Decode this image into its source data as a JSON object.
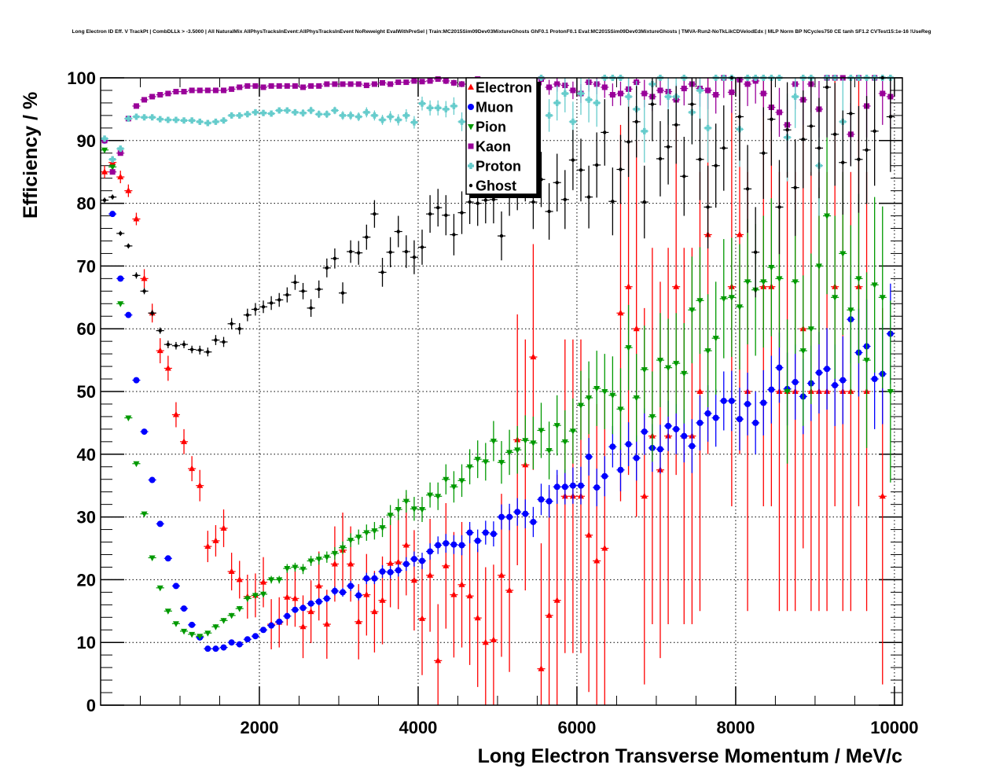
{
  "chart_data": {
    "type": "scatter",
    "title": "Long Electron ID Eff. V TrackPt | CombDLLk > -3.5000 | All NaturalMix AllPhysTracksInEvent:AllPhysTracksInEvent NoReweight EvalWithPreSel | Train:MC2015Sim09Dev03MixtureGhosts GhF0.1 ProtonF0.1 Eval:MC2015Sim09Dev03MixtureGhosts | TMVA-Run2-NoTkLikCDVelodEdx | MLP Norm BP NCycles750 CE tanh SF1.2 CVTest15:1e-16 !UseReg",
    "xlabel": "Long Electron Transverse Momentum / MeV/c",
    "ylabel": "Efficiency / %",
    "xlim": [
      0,
      10100
    ],
    "ylim": [
      0,
      100
    ],
    "grid": true,
    "legend_position": "top-center",
    "bin_start": 0,
    "bin_width": 100,
    "xticks": [
      "2000",
      "4000",
      "6000",
      "8000",
      "10000"
    ],
    "yticks": [
      "0",
      "10",
      "20",
      "30",
      "40",
      "50",
      "60",
      "70",
      "80",
      "90",
      "100"
    ],
    "series": [
      {
        "name": "Electron",
        "color": "#ff0000",
        "marker": "triangle-up",
        "values": [
          85,
          86.5,
          84.2,
          82,
          77.5,
          68,
          62.5,
          56.5,
          53.7,
          46.3,
          42,
          37.7,
          35,
          25.3,
          26.2,
          28.2,
          21.3,
          20,
          17.3,
          17.5,
          19.6,
          12.9,
          13.2,
          17.2,
          17,
          12.5,
          14.9,
          19,
          12.9,
          22.5,
          24.7,
          22.5,
          13.3,
          17.6,
          14.9,
          16.7,
          22.6,
          22.8,
          25.5,
          19.9,
          13.8,
          20.7,
          7.1,
          22.2,
          17.6,
          19.2,
          17.4,
          13.9,
          10,
          10.4,
          20.7,
          18.3,
          42.3,
          38.3,
          55.5,
          5.8,
          14.3,
          16.7,
          33.3,
          33.3,
          33.3,
          27.1,
          23,
          25,
          null,
          62.5,
          66.7,
          60,
          33.3,
          42.9,
          37.5,
          42.9,
          66.7,
          42.9,
          42.9,
          50,
          75,
          null,
          null,
          66.7,
          75,
          50,
          null,
          66.7,
          66.7,
          50,
          50,
          50,
          60,
          50,
          50,
          50,
          66.7,
          50,
          50,
          66.7,
          50,
          null,
          33.3,
          null
        ],
        "errors": [
          1,
          1,
          1,
          1,
          1,
          1.5,
          1.5,
          2,
          2,
          2,
          2,
          2,
          2.5,
          2.5,
          2.5,
          3,
          3,
          3,
          3.5,
          3.5,
          4,
          4,
          4,
          4.5,
          4.5,
          5,
          5,
          5.5,
          5.5,
          6,
          6,
          6,
          6,
          6.5,
          6.5,
          7,
          7,
          7.5,
          8,
          8,
          9,
          9,
          9,
          10,
          10,
          10,
          11,
          11,
          12,
          12,
          13,
          13,
          20,
          20,
          18,
          20,
          20,
          20,
          25,
          25,
          25,
          25,
          25,
          25,
          0,
          30,
          30,
          30,
          30,
          30,
          30,
          30,
          30,
          30,
          30,
          35,
          35,
          0,
          0,
          35,
          35,
          35,
          0,
          35,
          35,
          35,
          35,
          35,
          35,
          35,
          35,
          35,
          35,
          35,
          35,
          35,
          35,
          0,
          30,
          0
        ]
      },
      {
        "name": "Muon",
        "color": "#0000ff",
        "marker": "circle",
        "values": [
          90,
          78.3,
          68,
          62.2,
          51.8,
          43.6,
          35.9,
          28.9,
          23.4,
          19,
          15.4,
          12.8,
          10.8,
          9,
          9,
          9.2,
          10,
          9.7,
          10.5,
          11,
          12,
          12.7,
          13.3,
          14.2,
          15.2,
          15.5,
          16.2,
          16.5,
          17,
          18.2,
          18,
          19,
          17.5,
          20.2,
          20.2,
          21.3,
          21.2,
          21.5,
          22.5,
          23.3,
          23,
          24.5,
          25.5,
          25.8,
          25.6,
          25.5,
          27.5,
          26.2,
          27.5,
          27.3,
          30,
          30,
          30.8,
          30.5,
          29.2,
          32.8,
          32.5,
          34.8,
          34.8,
          35,
          35,
          39.6,
          34.7,
          36.5,
          41.2,
          37.5,
          41.6,
          39.4,
          43.6,
          41,
          40.8,
          44.5,
          44,
          42.9,
          41.3,
          45,
          46.5,
          45.8,
          48.5,
          48.5,
          45.6,
          48,
          45,
          48.2,
          50.3,
          53.8,
          50.4,
          51.5,
          49.2,
          51.3,
          53,
          53.6,
          51,
          51.8,
          61.5,
          56.2,
          57.2,
          52,
          52.8,
          59.2
        ],
        "errors": [
          0.3,
          0.3,
          0.3,
          0.3,
          0.3,
          0.3,
          0.3,
          0.3,
          0.3,
          0.3,
          0.3,
          0.3,
          0.3,
          0.3,
          0.3,
          0.3,
          0.3,
          0.3,
          0.4,
          0.4,
          0.4,
          0.4,
          0.4,
          0.5,
          0.5,
          0.5,
          0.5,
          0.6,
          0.6,
          0.7,
          0.7,
          0.8,
          0.8,
          0.9,
          0.9,
          1,
          1,
          1,
          1.1,
          1.2,
          1.3,
          1.3,
          1.4,
          1.5,
          1.5,
          1.6,
          1.7,
          1.8,
          1.9,
          2,
          2,
          2.1,
          2.2,
          2.3,
          2.4,
          2.5,
          2.6,
          2.7,
          2.8,
          2.9,
          3,
          3,
          3,
          3.2,
          3.3,
          3.4,
          3.5,
          3.6,
          3.7,
          3.8,
          3.9,
          4,
          4,
          4.2,
          4.3,
          4.4,
          4.5,
          4.6,
          4.7,
          4.8,
          5,
          5,
          5,
          5.2,
          5.4,
          5.6,
          5.8,
          6,
          6,
          6,
          6.5,
          6.5,
          6.5,
          7,
          7,
          7,
          7.5,
          8,
          8,
          8
        ]
      },
      {
        "name": "Pion",
        "color": "#009900",
        "marker": "triangle-down",
        "values": [
          88.5,
          85.8,
          64,
          45.8,
          38.5,
          30.5,
          23.5,
          18.7,
          15,
          13,
          11.8,
          11.3,
          11,
          11.5,
          12.5,
          13.5,
          14.3,
          15.4,
          17,
          17.5,
          17.7,
          20,
          20,
          21.8,
          22,
          21.7,
          23,
          23.3,
          23.6,
          24.2,
          25.1,
          26.3,
          26.8,
          27.5,
          27.8,
          28.3,
          30.3,
          31.2,
          32.5,
          31.3,
          31.2,
          33.5,
          33.3,
          36,
          34.8,
          35.8,
          38,
          39.2,
          38.8,
          42.1,
          38.7,
          40.3,
          40.7,
          42.2,
          41.8,
          43.8,
          40.6,
          44.6,
          42,
          43.7,
          47.8,
          49,
          50.5,
          50,
          49.4,
          47.2,
          57,
          49,
          53.5,
          46,
          55,
          53.8,
          54.5,
          52.9,
          63,
          64.5,
          56.5,
          58.5,
          64.8,
          65,
          63.5,
          67.5,
          66.2,
          67.5,
          69.8,
          68,
          50,
          67.5,
          56.5,
          60,
          70,
          78,
          65,
          72,
          63,
          68,
          55,
          67,
          65,
          50
        ],
        "errors": [
          0.3,
          0.3,
          0.3,
          0.3,
          0.3,
          0.3,
          0.3,
          0.3,
          0.3,
          0.3,
          0.3,
          0.3,
          0.3,
          0.3,
          0.4,
          0.4,
          0.4,
          0.4,
          0.5,
          0.5,
          0.5,
          0.6,
          0.6,
          0.7,
          0.7,
          0.8,
          0.8,
          0.9,
          0.9,
          1,
          1,
          1.1,
          1.2,
          1.3,
          1.4,
          1.5,
          1.6,
          1.7,
          1.8,
          1.9,
          2,
          2,
          2.2,
          2.4,
          2.5,
          2.6,
          2.8,
          3,
          3,
          3.2,
          3.4,
          3.6,
          3.8,
          4,
          4.2,
          4.4,
          4.6,
          4.8,
          5,
          5.2,
          5.5,
          5.8,
          6,
          6,
          6.2,
          6.5,
          6.8,
          7,
          7,
          7.2,
          7.5,
          7.8,
          8,
          8,
          8.5,
          8.5,
          9,
          9,
          9.5,
          9.5,
          10,
          10,
          10.5,
          10.5,
          11,
          11,
          11.5,
          11.5,
          12,
          12,
          12.5,
          12.5,
          13,
          13,
          13.5,
          13.5,
          14,
          14,
          14.5,
          14.5
        ]
      },
      {
        "name": "Kaon",
        "color": "#990099",
        "marker": "square",
        "values": [
          90,
          85,
          88,
          93.5,
          95.5,
          96.5,
          97,
          97.3,
          97.5,
          97.8,
          97.8,
          98,
          98,
          98,
          98,
          98,
          98.2,
          98.5,
          98.7,
          98.7,
          98.5,
          98.7,
          98.7,
          98.7,
          98.7,
          98.5,
          98.7,
          98.7,
          99,
          99,
          99,
          99,
          99,
          98.8,
          99,
          99.2,
          99,
          99.3,
          99.3,
          99.5,
          99.4,
          99.5,
          99.8,
          99.5,
          99.2,
          99,
          99.3,
          99.8,
          99.5,
          99.6,
          99,
          98,
          99,
          97.5,
          99.5,
          99.8,
          98.5,
          99,
          98.8,
          98,
          97.5,
          99.3,
          99,
          98.5,
          97.3,
          97.5,
          98.2,
          99.3,
          97.5,
          97,
          98,
          97.8,
          96.5,
          98.3,
          99,
          98.3,
          98,
          97.3,
          100,
          97.7,
          99.7,
          99,
          99.5,
          97.5,
          95.3,
          94.5,
          92.5,
          99,
          96.5,
          99,
          95,
          100,
          100,
          100,
          91,
          100,
          95.5,
          100,
          97.5,
          97
        ],
        "errors": [
          0.3,
          0.3,
          0.3,
          0.3,
          0.3,
          0.3,
          0.2,
          0.2,
          0.2,
          0.2,
          0.2,
          0.2,
          0.2,
          0.2,
          0.2,
          0.2,
          0.2,
          0.2,
          0.2,
          0.2,
          0.2,
          0.2,
          0.2,
          0.2,
          0.2,
          0.2,
          0.2,
          0.2,
          0.2,
          0.2,
          0.3,
          0.3,
          0.3,
          0.3,
          0.3,
          0.3,
          0.3,
          0.3,
          0.4,
          0.4,
          0.4,
          0.4,
          0.4,
          0.5,
          0.5,
          0.5,
          0.6,
          0.6,
          0.6,
          0.7,
          0.8,
          0.8,
          0.9,
          1,
          1,
          1,
          1.2,
          1.2,
          1.3,
          1.4,
          1.5,
          1.5,
          1.6,
          1.7,
          1.8,
          1.9,
          2,
          2,
          2.2,
          2.3,
          2.4,
          2.5,
          2.6,
          2.7,
          2.8,
          2.9,
          3,
          3,
          3.2,
          3.3,
          3.4,
          3.5,
          3.6,
          3.7,
          3.8,
          3.9,
          4,
          4,
          4,
          4.5,
          4.5,
          0,
          0,
          0,
          5,
          0,
          5,
          0,
          5,
          5
        ]
      },
      {
        "name": "Proton",
        "color": "#66cccc",
        "marker": "cross",
        "values": [
          90.3,
          87,
          88.7,
          93.5,
          93.8,
          93.7,
          93.7,
          93.4,
          93.3,
          93.3,
          93.2,
          93.2,
          93,
          92.8,
          93,
          93.2,
          94,
          94,
          94.2,
          94.5,
          94.4,
          94.3,
          94.8,
          94.8,
          94.5,
          94.4,
          94.8,
          94.2,
          94.2,
          94.8,
          94,
          94,
          93.8,
          94.5,
          94,
          93.3,
          93.8,
          93.3,
          94,
          92.9,
          95.9,
          95.2,
          95.2,
          95,
          95.5,
          93,
          93,
          92.5,
          96,
          96,
          94.5,
          94.5,
          95.2,
          95.5,
          93.8,
          100,
          94,
          96,
          97.5,
          93,
          97.5,
          96.5,
          96,
          100,
          100,
          100,
          97,
          95,
          91.5,
          99,
          100,
          97,
          97,
          100,
          94.5,
          98,
          92,
          100,
          100,
          100,
          91.8,
          100,
          100,
          100,
          100,
          100,
          90.5,
          97,
          100,
          100,
          86,
          100,
          100,
          93,
          100,
          100,
          100,
          100,
          100,
          100
        ],
        "errors": [
          0.5,
          0.5,
          0.5,
          0.4,
          0.4,
          0.4,
          0.4,
          0.4,
          0.4,
          0.4,
          0.4,
          0.4,
          0.4,
          0.4,
          0.4,
          0.4,
          0.5,
          0.5,
          0.5,
          0.5,
          0.5,
          0.5,
          0.5,
          0.5,
          0.5,
          0.6,
          0.6,
          0.6,
          0.6,
          0.6,
          0.7,
          0.7,
          0.7,
          0.8,
          0.8,
          0.8,
          0.9,
          0.9,
          1,
          1,
          1.1,
          1.2,
          1.2,
          1.3,
          1.4,
          1.5,
          1.6,
          1.7,
          1.8,
          1.9,
          2,
          2.1,
          2.2,
          2.3,
          2.4,
          0,
          2.6,
          2.8,
          3,
          3.2,
          3.4,
          3.6,
          3.8,
          0,
          0,
          0,
          4,
          4.5,
          5,
          4,
          0,
          4.5,
          4.5,
          0,
          5,
          4.5,
          5.5,
          0,
          0,
          0,
          6,
          0,
          0,
          0,
          0,
          0,
          7,
          5,
          0,
          0,
          8,
          0,
          0,
          7,
          0,
          0,
          0,
          0,
          0,
          0
        ]
      },
      {
        "name": "Ghost",
        "color": "#000000",
        "marker": "dot",
        "values": [
          80.5,
          81,
          75.2,
          73.2,
          68.5,
          66,
          62.5,
          59.7,
          57.5,
          57.3,
          57.5,
          56.7,
          56.6,
          56.3,
          58.2,
          57.9,
          60.8,
          60,
          62.2,
          63.1,
          63.5,
          64.1,
          64.6,
          65.4,
          67.4,
          66,
          63.3,
          66.3,
          69.7,
          71.2,
          65.7,
          72.3,
          72.1,
          74.6,
          78.3,
          69,
          72.2,
          75.5,
          72.3,
          71.4,
          73,
          78.3,
          79.3,
          78.1,
          75,
          78.5,
          80.2,
          80,
          80.5,
          80.6,
          74.8,
          82,
          83,
          84.5,
          80.2,
          83.8,
          78.7,
          83.3,
          80.6,
          86.9,
          85.3,
          81,
          86.1,
          91.3,
          80.3,
          85.4,
          89.8,
          93,
          80.2,
          95.8,
          87.1,
          89,
          92.5,
          84.3,
          95.8,
          87,
          79.4,
          86,
          88.8,
          100,
          93.8,
          82.3,
          72.2,
          88,
          93.4,
          79.4,
          91.7,
          82.5,
          90.2,
          92.3,
          88.8,
          98.5,
          91,
          86.5,
          94.3,
          87,
          88.5,
          91.5,
          100,
          93.8
        ],
        "errors": [
          0.4,
          0.4,
          0.4,
          0.4,
          0.5,
          0.5,
          0.5,
          0.5,
          0.6,
          0.6,
          0.6,
          0.6,
          0.7,
          0.7,
          0.8,
          0.8,
          0.9,
          0.9,
          1,
          1,
          1,
          1.1,
          1.1,
          1.2,
          1.2,
          1.3,
          1.4,
          1.4,
          1.5,
          1.6,
          1.7,
          1.8,
          1.9,
          2,
          2.2,
          2.3,
          2.4,
          2.5,
          2.6,
          2.7,
          2.8,
          3,
          3,
          3.2,
          3.3,
          3.4,
          3.5,
          3.6,
          3.7,
          3.8,
          3.9,
          4,
          4.1,
          4.2,
          4.3,
          4.4,
          4.5,
          4.6,
          4.7,
          4.8,
          5,
          5,
          5.2,
          5.3,
          5.4,
          5.5,
          5.6,
          5.7,
          5.8,
          5.9,
          6,
          6,
          6.2,
          6.3,
          6.4,
          6.5,
          6.6,
          6.7,
          6.8,
          0,
          7,
          7,
          7.2,
          7.3,
          7.4,
          7.5,
          7.6,
          7.7,
          7.8,
          7.9,
          8,
          8,
          8.2,
          8.3,
          8.4,
          8.5,
          8.6,
          8.7,
          0,
          8.8
        ]
      }
    ]
  }
}
